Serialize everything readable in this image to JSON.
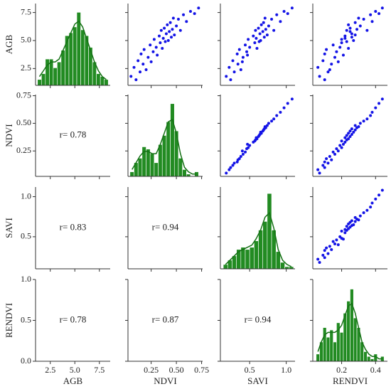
{
  "chart_data": {
    "type": "pairplot",
    "variables": [
      "AGB",
      "NDVI",
      "SAVI",
      "RENDVI"
    ],
    "scatter_color": "#1414e6",
    "hist_color": "#228b22",
    "kde_color": "#157015",
    "axes": [
      {
        "xlim": [
          1.0,
          8.6
        ],
        "xticks": [
          2.5,
          {
            "value": 5.0,
            "label": "5.0"
          },
          7.5
        ],
        "ylim": [
          1.0,
          8.3
        ],
        "yticks": [
          2.5,
          {
            "value": 5.0,
            "label": "5.0"
          },
          7.5
        ]
      },
      {
        "xlim": [
          0.02,
          0.76
        ],
        "xticks": [
          0.25,
          {
            "value": 0.5,
            "label": "0.50"
          },
          0.75
        ],
        "ylim": [
          0.02,
          0.76
        ],
        "yticks": [
          0.25,
          {
            "value": 0.5,
            "label": "0.50"
          },
          0.75
        ]
      },
      {
        "xlim": [
          0.1,
          1.12
        ],
        "xticks": [
          0.5,
          {
            "value": 1.0,
            "label": "1.0"
          }
        ],
        "ylim": [
          0.1,
          1.12
        ],
        "yticks": [
          0.5,
          {
            "value": 1.0,
            "label": "1.0"
          }
        ]
      },
      {
        "xlim": [
          0.03,
          0.47
        ],
        "xticks": [
          0.2,
          0.4
        ],
        "ylim": [
          0,
          1.0
        ],
        "yticks": [
          {
            "value": 0,
            "label": "0.0"
          },
          0.5,
          {
            "value": 1.0,
            "label": "1.0"
          }
        ]
      }
    ],
    "samples": [
      [
        1.8,
        2.6,
        1.5,
        3.2,
        2.2,
        3.8,
        2.9,
        4.2,
        2.4,
        3.5,
        4.6,
        3.1,
        4.0,
        5.1,
        4.4,
        3.7,
        5.4,
        4.8,
        5.9,
        4.3,
        5.2,
        6.1,
        4.9,
        5.6,
        6.4,
        5.0,
        5.8,
        6.6,
        5.3,
        6.0,
        7.0,
        5.5,
        6.3,
        6.9,
        5.9,
        7.3,
        6.7,
        7.6,
        7.4,
        7.9
      ],
      [
        0.05,
        0.08,
        0.1,
        0.12,
        0.14,
        0.15,
        0.17,
        0.18,
        0.2,
        0.22,
        0.24,
        0.25,
        0.27,
        0.28,
        0.3,
        0.31,
        0.33,
        0.34,
        0.35,
        0.36,
        0.37,
        0.38,
        0.39,
        0.4,
        0.41,
        0.42,
        0.43,
        0.44,
        0.45,
        0.46,
        0.47,
        0.48,
        0.5,
        0.52,
        0.54,
        0.57,
        0.6,
        0.64,
        0.68,
        0.72
      ],
      [
        0.18,
        0.22,
        0.24,
        0.27,
        0.29,
        0.33,
        0.34,
        0.36,
        0.38,
        0.41,
        0.44,
        0.4,
        0.46,
        0.48,
        0.5,
        0.47,
        0.55,
        0.57,
        0.58,
        0.6,
        0.59,
        0.62,
        0.63,
        0.64,
        0.66,
        0.65,
        0.68,
        0.69,
        0.7,
        0.72,
        0.71,
        0.74,
        0.76,
        0.8,
        0.83,
        0.87,
        0.92,
        0.97,
        1.02,
        1.08
      ],
      [
        0.07,
        0.06,
        0.1,
        0.09,
        0.12,
        0.1,
        0.14,
        0.11,
        0.13,
        0.16,
        0.15,
        0.18,
        0.17,
        0.2,
        0.19,
        0.21,
        0.22,
        0.2,
        0.23,
        0.24,
        0.22,
        0.25,
        0.23,
        0.26,
        0.24,
        0.27,
        0.25,
        0.28,
        0.26,
        0.29,
        0.3,
        0.28,
        0.31,
        0.33,
        0.35,
        0.37,
        0.38,
        0.4,
        0.42,
        0.44
      ]
    ],
    "histograms": [
      {
        "bins": [
          1.2,
          1.6,
          2.0,
          2.4,
          2.8,
          3.2,
          3.6,
          4.0,
          4.4,
          4.8,
          5.2,
          5.6,
          6.0,
          6.4,
          6.8,
          7.2,
          7.6,
          8.0,
          8.4
        ],
        "counts": [
          2,
          4,
          9,
          9,
          6,
          8,
          12,
          17,
          18,
          20,
          25,
          19,
          17,
          13,
          8,
          4,
          3,
          2
        ],
        "countlim": [
          0,
          28
        ],
        "kde": {
          "x": [
            1.4,
            1.8,
            2.2,
            2.6,
            3.0,
            3.4,
            3.8,
            4.2,
            4.6,
            5.0,
            5.4,
            5.8,
            6.2,
            6.6,
            7.0,
            7.4,
            7.8,
            8.2
          ],
          "values": [
            3,
            5,
            7,
            8,
            8,
            9,
            12,
            15,
            18,
            21,
            22,
            20,
            16,
            12,
            8,
            5,
            3,
            2
          ]
        }
      },
      {
        "bins": [
          0.04,
          0.08,
          0.12,
          0.16,
          0.2,
          0.24,
          0.28,
          0.32,
          0.36,
          0.4,
          0.44,
          0.48,
          0.52,
          0.56,
          0.6,
          0.64,
          0.68,
          0.72
        ],
        "counts": [
          2,
          6,
          8,
          13,
          12,
          10,
          6,
          14,
          18,
          24,
          32,
          20,
          8,
          3,
          1,
          0,
          2
        ],
        "countlim": [
          0,
          36
        ],
        "kde": {
          "x": [
            0.06,
            0.1,
            0.14,
            0.18,
            0.22,
            0.26,
            0.3,
            0.34,
            0.38,
            0.42,
            0.46,
            0.5,
            0.54,
            0.58,
            0.62,
            0.66,
            0.7
          ],
          "values": [
            3,
            6,
            9,
            11,
            11,
            10,
            10,
            14,
            19,
            24,
            25,
            19,
            10,
            4,
            2,
            1,
            1
          ]
        }
      },
      {
        "bins": [
          0.14,
          0.2,
          0.26,
          0.32,
          0.38,
          0.44,
          0.5,
          0.56,
          0.62,
          0.68,
          0.74,
          0.8,
          0.86,
          0.92,
          0.98,
          1.04,
          1.1
        ],
        "counts": [
          2,
          4,
          6,
          9,
          10,
          9,
          10,
          13,
          18,
          22,
          35,
          18,
          8,
          3,
          1,
          1
        ],
        "countlim": [
          0,
          38
        ],
        "kde": {
          "x": [
            0.17,
            0.23,
            0.29,
            0.35,
            0.41,
            0.47,
            0.53,
            0.59,
            0.65,
            0.71,
            0.77,
            0.83,
            0.89,
            0.95,
            1.01,
            1.07
          ],
          "values": [
            2,
            4,
            6,
            8,
            9,
            10,
            11,
            14,
            18,
            24,
            26,
            19,
            9,
            4,
            2,
            1
          ]
        }
      },
      {
        "bins": [
          0.05,
          0.07,
          0.09,
          0.11,
          0.13,
          0.15,
          0.17,
          0.19,
          0.21,
          0.23,
          0.25,
          0.27,
          0.29,
          0.31,
          0.33,
          0.35,
          0.37,
          0.39,
          0.41,
          0.43,
          0.45
        ],
        "counts": [
          3,
          8,
          14,
          10,
          13,
          8,
          16,
          12,
          20,
          25,
          30,
          18,
          14,
          8,
          4,
          2,
          1,
          3,
          0,
          2
        ],
        "countlim": [
          0,
          34
        ],
        "kde": {
          "x": [
            0.06,
            0.08,
            0.1,
            0.12,
            0.14,
            0.16,
            0.18,
            0.2,
            0.22,
            0.24,
            0.26,
            0.28,
            0.3,
            0.32,
            0.34,
            0.36,
            0.38,
            0.4,
            0.42,
            0.44
          ],
          "values": [
            4,
            8,
            11,
            12,
            12,
            12,
            13,
            15,
            19,
            23,
            24,
            20,
            14,
            8,
            5,
            3,
            2,
            2,
            1,
            1
          ]
        }
      }
    ],
    "correlations": [
      [],
      [
        "r= 0.78"
      ],
      [
        "r= 0.83",
        "r= 0.94"
      ],
      [
        "r= 0.78",
        "r= 0.87",
        "r= 0.94"
      ]
    ]
  }
}
